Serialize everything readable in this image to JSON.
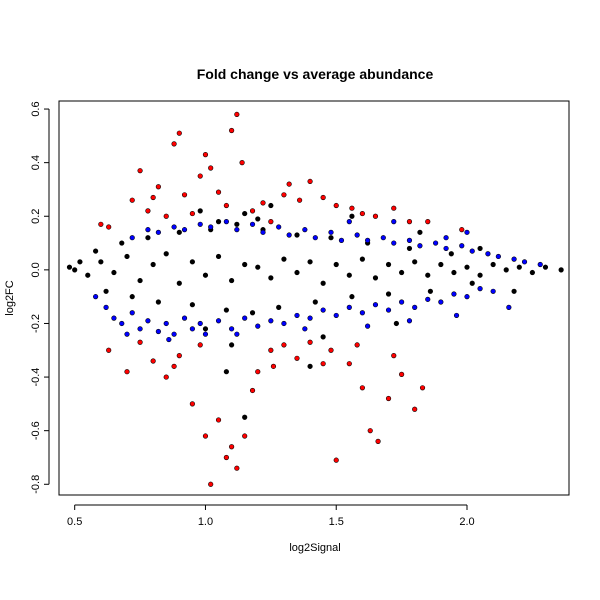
{
  "chart_data": {
    "type": "scatter",
    "title": "Fold change vs average abundance",
    "xlabel": "log2Signal",
    "ylabel": "log2FC",
    "xlim": [
      0.44,
      2.39
    ],
    "ylim": [
      -0.84,
      0.63
    ],
    "xticks": [
      0.5,
      1.0,
      1.5,
      2.0
    ],
    "xtick_labels": [
      "0.5",
      "1.0",
      "1.5",
      "2.0"
    ],
    "yticks": [
      -0.8,
      -0.6,
      -0.4,
      -0.2,
      0.0,
      0.2,
      0.4,
      0.6
    ],
    "ytick_labels": [
      "-0.8",
      "-0.6",
      "-0.4",
      "-0.2",
      "0.0",
      "0.2",
      "0.4",
      "0.6"
    ],
    "grid": false,
    "legend": "none",
    "colors": {
      "black": "#000000",
      "blue": "#0000ff",
      "red": "#ff0000"
    },
    "series": [
      {
        "color": "black",
        "points": [
          [
            0.48,
            0.01
          ],
          [
            0.5,
            0.0
          ],
          [
            0.52,
            0.03
          ],
          [
            0.55,
            -0.02
          ],
          [
            0.6,
            0.03
          ],
          [
            0.65,
            -0.01
          ],
          [
            0.7,
            0.05
          ],
          [
            0.75,
            -0.04
          ],
          [
            0.8,
            0.02
          ],
          [
            0.85,
            0.06
          ],
          [
            0.9,
            -0.05
          ],
          [
            0.95,
            0.03
          ],
          [
            1.0,
            -0.02
          ],
          [
            1.05,
            0.05
          ],
          [
            1.1,
            -0.04
          ],
          [
            1.15,
            0.02
          ],
          [
            1.2,
            0.01
          ],
          [
            1.25,
            -0.03
          ],
          [
            1.3,
            0.04
          ],
          [
            1.35,
            -0.01
          ],
          [
            1.4,
            0.03
          ],
          [
            1.45,
            -0.05
          ],
          [
            1.5,
            0.02
          ],
          [
            1.55,
            -0.02
          ],
          [
            1.6,
            0.04
          ],
          [
            1.65,
            -0.03
          ],
          [
            1.7,
            0.02
          ],
          [
            1.75,
            -0.01
          ],
          [
            1.8,
            0.03
          ],
          [
            1.85,
            -0.02
          ],
          [
            1.9,
            0.02
          ],
          [
            1.95,
            -0.01
          ],
          [
            2.0,
            0.01
          ],
          [
            2.05,
            -0.02
          ],
          [
            2.1,
            0.02
          ],
          [
            2.15,
            0.0
          ],
          [
            2.2,
            0.01
          ],
          [
            2.25,
            -0.01
          ],
          [
            2.3,
            0.01
          ],
          [
            2.36,
            0.0
          ],
          [
            0.58,
            0.07
          ],
          [
            0.62,
            -0.08
          ],
          [
            0.68,
            0.1
          ],
          [
            0.72,
            -0.1
          ],
          [
            0.78,
            0.12
          ],
          [
            0.82,
            -0.12
          ],
          [
            0.9,
            0.14
          ],
          [
            0.95,
            -0.13
          ],
          [
            1.02,
            0.15
          ],
          [
            1.08,
            -0.15
          ],
          [
            1.12,
            0.17
          ],
          [
            1.18,
            -0.16
          ],
          [
            1.22,
            0.15
          ],
          [
            1.28,
            -0.14
          ],
          [
            1.35,
            0.13
          ],
          [
            1.42,
            -0.12
          ],
          [
            1.48,
            0.12
          ],
          [
            1.56,
            -0.1
          ],
          [
            1.62,
            0.1
          ],
          [
            1.7,
            -0.09
          ],
          [
            1.78,
            0.08
          ],
          [
            1.86,
            -0.08
          ],
          [
            1.94,
            0.06
          ],
          [
            2.02,
            -0.05
          ],
          [
            0.98,
            0.22
          ],
          [
            1.05,
            0.18
          ],
          [
            1.15,
            0.21
          ],
          [
            1.2,
            0.19
          ],
          [
            1.25,
            0.24
          ],
          [
            1.1,
            -0.28
          ],
          [
            1.0,
            -0.22
          ],
          [
            1.15,
            -0.55
          ],
          [
            1.08,
            -0.38
          ],
          [
            1.4,
            -0.36
          ],
          [
            1.56,
            0.2
          ],
          [
            1.45,
            -0.25
          ],
          [
            2.18,
            -0.08
          ],
          [
            2.05,
            0.08
          ],
          [
            1.82,
            0.14
          ],
          [
            1.73,
            -0.2
          ]
        ]
      },
      {
        "color": "blue",
        "points": [
          [
            0.58,
            -0.1
          ],
          [
            0.62,
            -0.14
          ],
          [
            0.65,
            -0.18
          ],
          [
            0.68,
            -0.2
          ],
          [
            0.72,
            -0.16
          ],
          [
            0.75,
            -0.22
          ],
          [
            0.78,
            -0.19
          ],
          [
            0.82,
            -0.23
          ],
          [
            0.85,
            -0.2
          ],
          [
            0.88,
            -0.24
          ],
          [
            0.92,
            -0.18
          ],
          [
            0.95,
            -0.22
          ],
          [
            0.98,
            -0.2
          ],
          [
            1.0,
            -0.24
          ],
          [
            1.05,
            -0.19
          ],
          [
            1.1,
            -0.22
          ],
          [
            1.15,
            -0.18
          ],
          [
            1.2,
            -0.21
          ],
          [
            1.25,
            -0.19
          ],
          [
            1.3,
            -0.2
          ],
          [
            1.35,
            -0.17
          ],
          [
            1.4,
            -0.18
          ],
          [
            1.45,
            -0.15
          ],
          [
            1.5,
            -0.17
          ],
          [
            1.55,
            -0.14
          ],
          [
            1.6,
            -0.16
          ],
          [
            1.65,
            -0.13
          ],
          [
            1.7,
            -0.15
          ],
          [
            1.75,
            -0.12
          ],
          [
            1.8,
            -0.14
          ],
          [
            1.85,
            -0.11
          ],
          [
            1.9,
            -0.12
          ],
          [
            1.95,
            -0.09
          ],
          [
            2.0,
            -0.1
          ],
          [
            2.05,
            -0.07
          ],
          [
            2.1,
            -0.08
          ],
          [
            0.72,
            0.12
          ],
          [
            0.78,
            0.15
          ],
          [
            0.82,
            0.14
          ],
          [
            0.88,
            0.16
          ],
          [
            0.92,
            0.15
          ],
          [
            0.98,
            0.17
          ],
          [
            1.02,
            0.16
          ],
          [
            1.08,
            0.18
          ],
          [
            1.12,
            0.15
          ],
          [
            1.18,
            0.17
          ],
          [
            1.22,
            0.14
          ],
          [
            1.28,
            0.16
          ],
          [
            1.32,
            0.13
          ],
          [
            1.38,
            0.15
          ],
          [
            1.42,
            0.12
          ],
          [
            1.48,
            0.14
          ],
          [
            1.52,
            0.11
          ],
          [
            1.58,
            0.13
          ],
          [
            1.62,
            0.11
          ],
          [
            1.68,
            0.12
          ],
          [
            1.72,
            0.1
          ],
          [
            1.78,
            0.11
          ],
          [
            1.82,
            0.09
          ],
          [
            1.88,
            0.1
          ],
          [
            1.92,
            0.08
          ],
          [
            1.98,
            0.09
          ],
          [
            2.02,
            0.07
          ],
          [
            2.08,
            0.06
          ],
          [
            2.12,
            0.05
          ],
          [
            2.18,
            0.04
          ],
          [
            2.22,
            0.03
          ],
          [
            2.28,
            0.02
          ],
          [
            1.55,
            0.18
          ],
          [
            1.72,
            0.18
          ],
          [
            1.92,
            0.12
          ],
          [
            2.0,
            0.14
          ],
          [
            1.38,
            -0.22
          ],
          [
            1.62,
            -0.21
          ],
          [
            1.78,
            -0.19
          ],
          [
            1.96,
            -0.17
          ],
          [
            2.16,
            -0.14
          ],
          [
            0.7,
            -0.24
          ],
          [
            0.86,
            -0.26
          ],
          [
            1.12,
            -0.24
          ]
        ]
      },
      {
        "color": "red",
        "points": [
          [
            0.6,
            0.17
          ],
          [
            0.63,
            0.16
          ],
          [
            0.72,
            0.26
          ],
          [
            0.75,
            0.37
          ],
          [
            0.78,
            0.22
          ],
          [
            0.8,
            0.27
          ],
          [
            0.82,
            0.31
          ],
          [
            0.85,
            0.2
          ],
          [
            0.88,
            0.47
          ],
          [
            0.9,
            0.51
          ],
          [
            0.92,
            0.28
          ],
          [
            0.95,
            0.21
          ],
          [
            0.98,
            0.35
          ],
          [
            1.0,
            0.43
          ],
          [
            1.02,
            0.38
          ],
          [
            1.05,
            0.29
          ],
          [
            1.08,
            0.24
          ],
          [
            1.1,
            0.52
          ],
          [
            1.12,
            0.58
          ],
          [
            1.14,
            0.4
          ],
          [
            1.18,
            0.22
          ],
          [
            1.22,
            0.25
          ],
          [
            1.25,
            0.18
          ],
          [
            1.3,
            0.28
          ],
          [
            1.32,
            0.32
          ],
          [
            1.36,
            0.26
          ],
          [
            1.4,
            0.33
          ],
          [
            1.45,
            0.27
          ],
          [
            1.5,
            0.24
          ],
          [
            1.56,
            0.23
          ],
          [
            1.6,
            0.21
          ],
          [
            1.65,
            0.2
          ],
          [
            1.72,
            0.23
          ],
          [
            1.78,
            0.18
          ],
          [
            1.85,
            0.18
          ],
          [
            1.98,
            0.15
          ],
          [
            0.63,
            -0.3
          ],
          [
            0.7,
            -0.38
          ],
          [
            0.75,
            -0.27
          ],
          [
            0.8,
            -0.34
          ],
          [
            0.85,
            -0.4
          ],
          [
            0.9,
            -0.32
          ],
          [
            0.95,
            -0.5
          ],
          [
            1.0,
            -0.62
          ],
          [
            1.02,
            -0.8
          ],
          [
            1.05,
            -0.56
          ],
          [
            1.08,
            -0.7
          ],
          [
            1.1,
            -0.66
          ],
          [
            1.12,
            -0.74
          ],
          [
            1.15,
            -0.62
          ],
          [
            1.18,
            -0.45
          ],
          [
            1.2,
            -0.38
          ],
          [
            1.25,
            -0.3
          ],
          [
            1.3,
            -0.28
          ],
          [
            1.35,
            -0.33
          ],
          [
            1.4,
            -0.27
          ],
          [
            1.45,
            -0.35
          ],
          [
            1.5,
            -0.71
          ],
          [
            1.55,
            -0.35
          ],
          [
            1.6,
            -0.44
          ],
          [
            1.63,
            -0.6
          ],
          [
            1.66,
            -0.64
          ],
          [
            1.7,
            -0.48
          ],
          [
            1.75,
            -0.39
          ],
          [
            1.8,
            -0.52
          ],
          [
            1.83,
            -0.44
          ],
          [
            1.72,
            -0.32
          ],
          [
            1.58,
            -0.28
          ],
          [
            1.48,
            -0.3
          ],
          [
            1.26,
            -0.36
          ],
          [
            0.98,
            -0.28
          ],
          [
            0.88,
            -0.36
          ]
        ]
      }
    ]
  }
}
